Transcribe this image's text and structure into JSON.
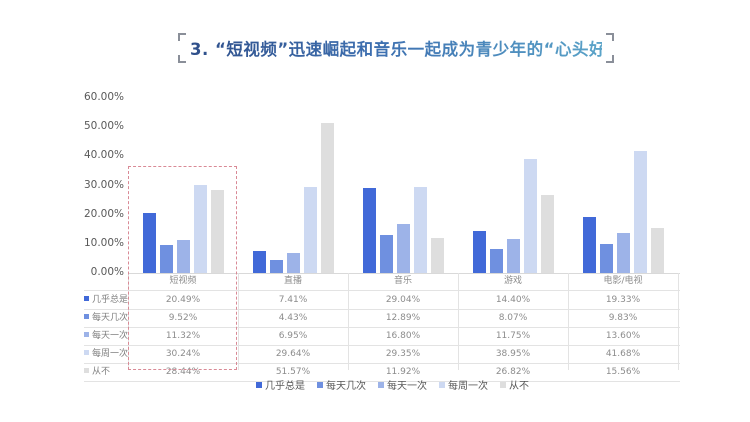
{
  "title": "3. “短视频”迅速崛起和音乐一起成为青少年的“心头好”",
  "chart_data": {
    "type": "bar",
    "title": "3. “短视频”迅速崛起和音乐一起成为青少年的“心头好”",
    "xlabel": "",
    "ylabel": "",
    "ylim": [
      0,
      60
    ],
    "yticks": [
      "0.00%",
      "10.00%",
      "20.00%",
      "30.00%",
      "40.00%",
      "50.00%",
      "60.00%"
    ],
    "categories": [
      "短视频",
      "直播",
      "音乐",
      "游戏",
      "电影/电视"
    ],
    "series": [
      {
        "name": "几乎总是",
        "color": "#4169d8",
        "values": [
          20.49,
          7.41,
          29.04,
          14.4,
          19.33
        ],
        "labels": [
          "20.49%",
          "7.41%",
          "29.04%",
          "14.40%",
          "19.33%"
        ]
      },
      {
        "name": "每天几次",
        "color": "#6f90e0",
        "values": [
          9.52,
          4.43,
          12.89,
          8.07,
          9.83
        ],
        "labels": [
          "9.52%",
          "4.43%",
          "12.89%",
          "8.07%",
          "9.83%"
        ]
      },
      {
        "name": "每天一次",
        "color": "#9db3e8",
        "values": [
          11.32,
          6.95,
          16.8,
          11.75,
          13.6
        ],
        "labels": [
          "11.32%",
          "6.95%",
          "16.80%",
          "11.75%",
          "13.60%"
        ]
      },
      {
        "name": "每周一次",
        "color": "#cdd9f2",
        "values": [
          30.24,
          29.64,
          29.35,
          38.95,
          41.68
        ],
        "labels": [
          "30.24%",
          "29.64%",
          "29.35%",
          "38.95%",
          "41.68%"
        ]
      },
      {
        "name": "从不",
        "color": "#dedede",
        "values": [
          28.44,
          51.57,
          11.92,
          26.82,
          15.56
        ],
        "labels": [
          "28.44%",
          "51.57%",
          "11.92%",
          "26.82%",
          "15.56%"
        ]
      }
    ],
    "grid": false,
    "legend_position": "bottom",
    "data_table": true,
    "annotations": [
      "dashed red box highlighting 短视频 column"
    ]
  },
  "legend": [
    "几乎总是",
    "每天几次",
    "每天一次",
    "每周一次",
    "从不"
  ]
}
